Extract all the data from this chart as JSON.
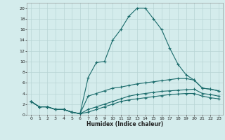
{
  "xlabel": "Humidex (Indice chaleur)",
  "bg_color": "#d4ecec",
  "grid_color": "#b8d4d4",
  "line_color": "#1a6b6b",
  "x_main": [
    0,
    1,
    2,
    3,
    4,
    5,
    6,
    7,
    8,
    9,
    10,
    11,
    12,
    13,
    14,
    15,
    16,
    17,
    18,
    19,
    20,
    21,
    22,
    23
  ],
  "y_main": [
    2.5,
    1.5,
    1.5,
    1.0,
    1.0,
    0.5,
    0.2,
    7.0,
    9.8,
    10.0,
    14.0,
    16.0,
    18.5,
    20.0,
    20.0,
    18.0,
    16.0,
    12.5,
    9.5,
    7.5,
    6.5,
    5.0,
    4.8,
    4.5
  ],
  "y_line2": [
    2.5,
    1.5,
    1.5,
    1.0,
    1.0,
    0.5,
    0.2,
    3.5,
    4.0,
    4.5,
    5.0,
    5.2,
    5.5,
    5.8,
    6.0,
    6.2,
    6.4,
    6.6,
    6.8,
    6.8,
    6.5,
    5.0,
    4.8,
    4.5
  ],
  "y_line3": [
    2.5,
    1.5,
    1.5,
    1.0,
    1.0,
    0.5,
    0.2,
    1.0,
    1.5,
    2.0,
    2.5,
    3.0,
    3.5,
    3.8,
    4.0,
    4.2,
    4.4,
    4.5,
    4.6,
    4.7,
    4.8,
    4.0,
    3.8,
    3.5
  ],
  "y_line4": [
    2.5,
    1.5,
    1.5,
    1.0,
    1.0,
    0.5,
    0.2,
    0.5,
    1.0,
    1.5,
    2.0,
    2.5,
    2.8,
    3.0,
    3.2,
    3.4,
    3.6,
    3.8,
    3.9,
    4.0,
    4.0,
    3.5,
    3.2,
    3.0
  ],
  "xlim": [
    -0.5,
    23.5
  ],
  "ylim": [
    0,
    21
  ],
  "yticks": [
    0,
    2,
    4,
    6,
    8,
    10,
    12,
    14,
    16,
    18,
    20
  ],
  "xticks": [
    0,
    1,
    2,
    3,
    4,
    5,
    6,
    7,
    8,
    9,
    10,
    11,
    12,
    13,
    14,
    15,
    16,
    17,
    18,
    19,
    20,
    21,
    22,
    23
  ],
  "xlabel_fontsize": 5.5,
  "tick_fontsize": 4.5,
  "linewidth": 0.8,
  "markersize": 3.0
}
